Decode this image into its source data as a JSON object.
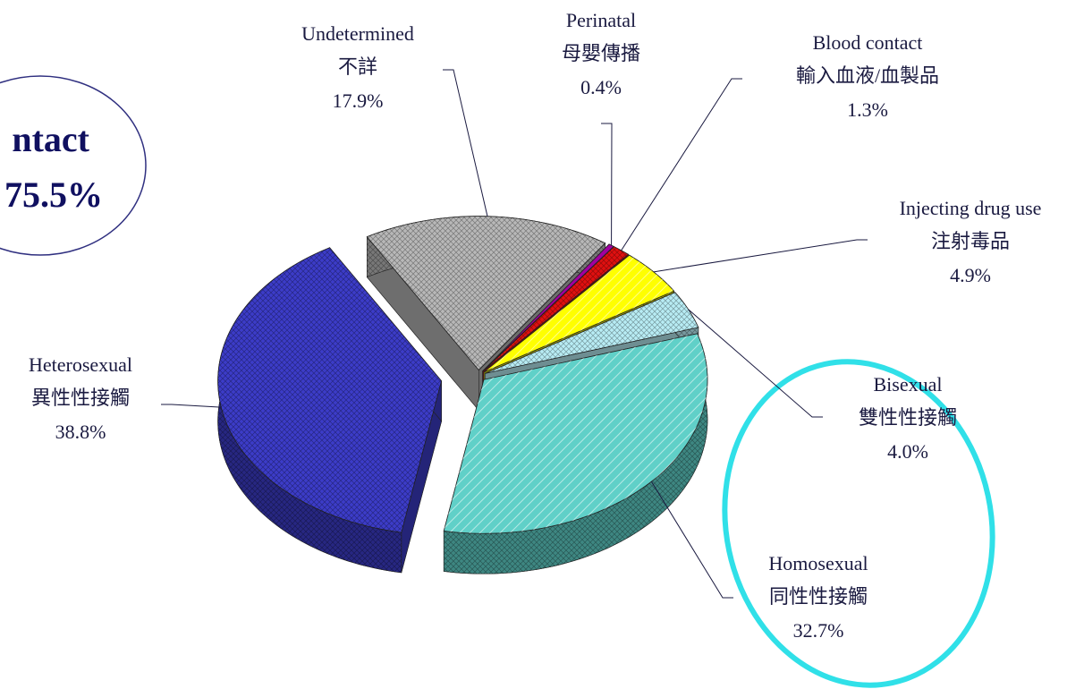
{
  "chart_data": {
    "type": "pie",
    "categories": [
      "Undetermined",
      "Perinatal",
      "Blood contact",
      "Injecting drug use",
      "Bisexual",
      "Homosexual",
      "Heterosexual"
    ],
    "subcategories": [
      "不詳",
      "母嬰傳播",
      "輸入血液/血製品",
      "注射毒品",
      "雙性性接觸",
      "同性性接觸",
      "異性性接觸"
    ],
    "values": [
      17.9,
      0.4,
      1.3,
      4.9,
      4.0,
      32.7,
      38.8
    ],
    "value_labels": [
      "17.9%",
      "0.4%",
      "1.3%",
      "4.9%",
      "4.0%",
      "32.7%",
      "38.8%"
    ],
    "colors": [
      "#b8b8b8",
      "#a000a0",
      "#e01010",
      "#ffff00",
      "#b8ecf4",
      "#60d0c8",
      "#3c3cc8"
    ],
    "annotation": {
      "text": "ntact",
      "value": 75.5,
      "value_label": "75.5%"
    }
  }
}
